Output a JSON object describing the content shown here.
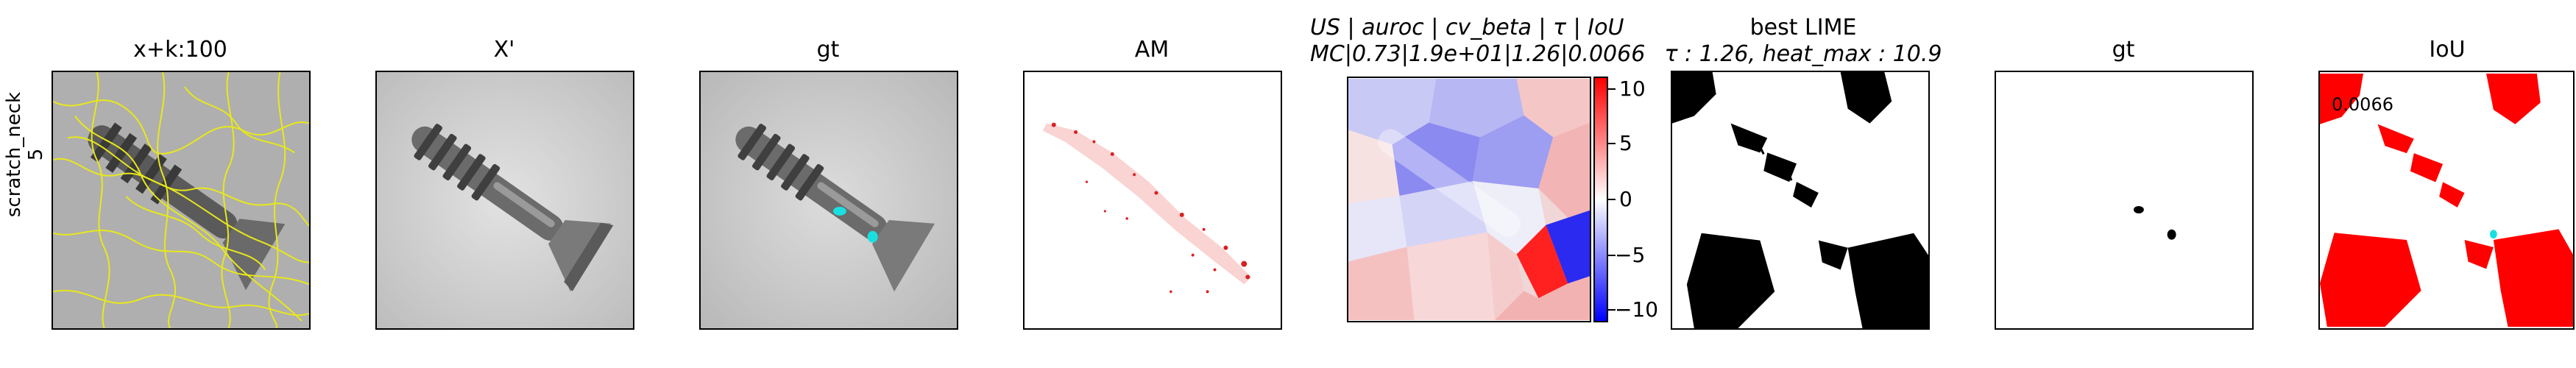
{
  "row": {
    "label_line1": "scratch_neck",
    "label_line2": "5"
  },
  "panels": [
    {
      "title": "x+k:100"
    },
    {
      "title": "X'"
    },
    {
      "title": "gt"
    },
    {
      "title": "AM"
    },
    {
      "title_line1": "US | auroc | cv_beta | τ | IoU",
      "title_line2": "MC|0.73|1.9e+01|1.26|0.0066"
    },
    {
      "title_line1": "best LIME",
      "title_line2": "τ : 1.26, heat_max : 10.9"
    },
    {
      "title": "gt"
    },
    {
      "title": "IoU",
      "annotation": "0.0066"
    }
  ],
  "colorbar": {
    "ticks": [
      "10",
      "5",
      "0",
      "−5",
      "−10"
    ]
  },
  "colors": {
    "yellow_contours": "#e8e81a",
    "cyan_gt": "#19e0e0",
    "red": "#ff0000",
    "blue": "#1a1aff"
  }
}
